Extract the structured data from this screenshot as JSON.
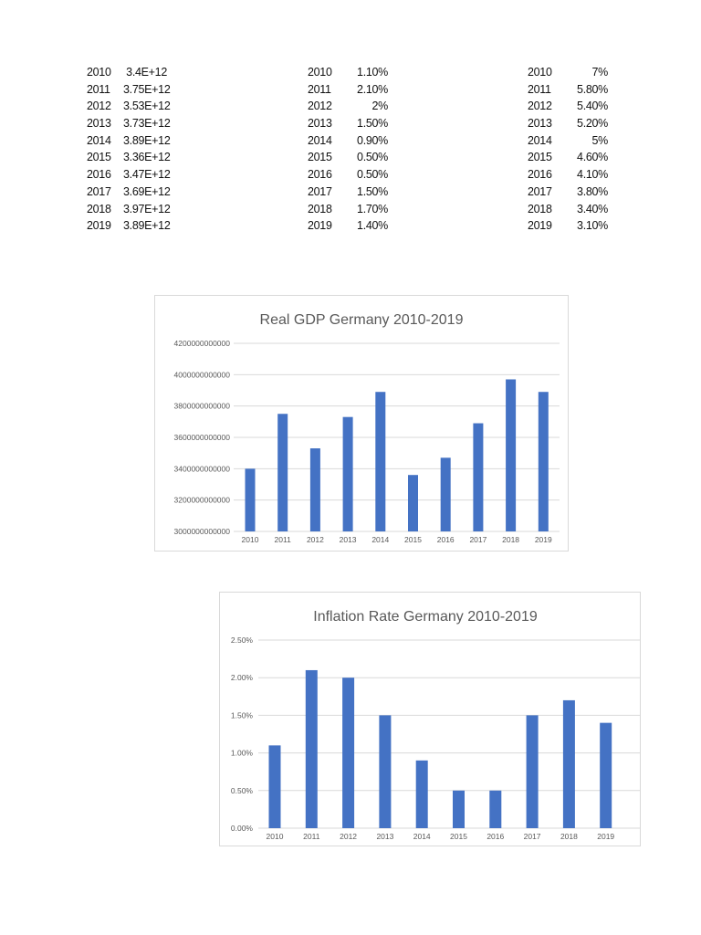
{
  "tables": [
    {
      "rows": [
        {
          "year": "2010",
          "value": "3.4E+12"
        },
        {
          "year": "2011",
          "value": "3.75E+12"
        },
        {
          "year": "2012",
          "value": "3.53E+12"
        },
        {
          "year": "2013",
          "value": "3.73E+12"
        },
        {
          "year": "2014",
          "value": "3.89E+12"
        },
        {
          "year": "2015",
          "value": "3.36E+12"
        },
        {
          "year": "2016",
          "value": "3.47E+12"
        },
        {
          "year": "2017",
          "value": "3.69E+12"
        },
        {
          "year": "2018",
          "value": "3.97E+12"
        },
        {
          "year": "2019",
          "value": "3.89E+12"
        }
      ]
    },
    {
      "rows": [
        {
          "year": "2010",
          "value": "1.10%"
        },
        {
          "year": "2011",
          "value": "2.10%"
        },
        {
          "year": "2012",
          "value": "2%"
        },
        {
          "year": "2013",
          "value": "1.50%"
        },
        {
          "year": "2014",
          "value": "0.90%"
        },
        {
          "year": "2015",
          "value": "0.50%"
        },
        {
          "year": "2016",
          "value": "0.50%"
        },
        {
          "year": "2017",
          "value": "1.50%"
        },
        {
          "year": "2018",
          "value": "1.70%"
        },
        {
          "year": "2019",
          "value": "1.40%"
        }
      ]
    },
    {
      "rows": [
        {
          "year": "2010",
          "value": "7%"
        },
        {
          "year": "2011",
          "value": "5.80%"
        },
        {
          "year": "2012",
          "value": "5.40%"
        },
        {
          "year": "2013",
          "value": "5.20%"
        },
        {
          "year": "2014",
          "value": "5%"
        },
        {
          "year": "2015",
          "value": "4.60%"
        },
        {
          "year": "2016",
          "value": "4.10%"
        },
        {
          "year": "2017",
          "value": "3.80%"
        },
        {
          "year": "2018",
          "value": "3.40%"
        },
        {
          "year": "2019",
          "value": "3.10%"
        }
      ]
    }
  ],
  "chart_data": [
    {
      "type": "bar",
      "title": "Real GDP Germany 2010-2019",
      "categories": [
        "2010",
        "2011",
        "2012",
        "2013",
        "2014",
        "2015",
        "2016",
        "2017",
        "2018",
        "2019"
      ],
      "values": [
        3400000000000.0,
        3750000000000.0,
        3530000000000.0,
        3730000000000.0,
        3890000000000.0,
        3360000000000.0,
        3470000000000.0,
        3690000000000.0,
        3970000000000.0,
        3890000000000.0
      ],
      "ylim": [
        3000000000000,
        4200000000000
      ],
      "yticks": [
        "3000000000000",
        "3200000000000",
        "3400000000000",
        "3600000000000",
        "3800000000000",
        "4000000000000",
        "4200000000000"
      ],
      "grid": true,
      "color": "#4472c4"
    },
    {
      "type": "bar",
      "title": "Inflation Rate Germany 2010-2019",
      "categories": [
        "2010",
        "2011",
        "2012",
        "2013",
        "2014",
        "2015",
        "2016",
        "2017",
        "2018",
        "2019"
      ],
      "values": [
        1.1,
        2.1,
        2.0,
        1.5,
        0.9,
        0.5,
        0.5,
        1.5,
        1.7,
        1.4
      ],
      "ylim": [
        0,
        2.5
      ],
      "yticks": [
        "0.00%",
        "0.50%",
        "1.00%",
        "1.50%",
        "2.00%",
        "2.50%"
      ],
      "grid": true,
      "color": "#4472c4"
    }
  ]
}
